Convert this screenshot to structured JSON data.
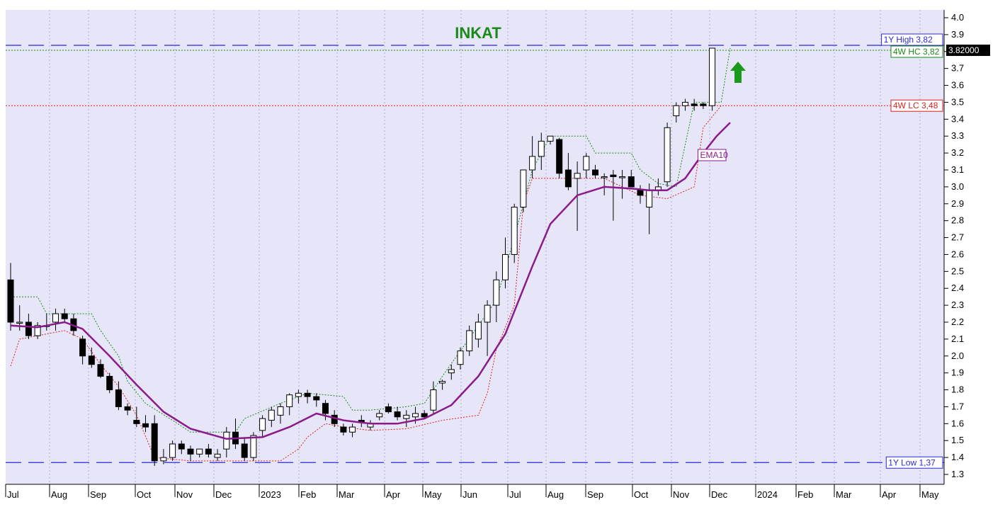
{
  "chart_data": {
    "type": "candlestick",
    "title": "INKAT",
    "price_label": "3.82000",
    "ylim": [
      1.3,
      4.0
    ],
    "y_ticks": [
      "4.0",
      "3.9",
      "3.8",
      "3.7",
      "3.6",
      "3.5",
      "3.4",
      "3.3",
      "3.2",
      "3.1",
      "3.0",
      "2.9",
      "2.8",
      "2.7",
      "2.6",
      "2.5",
      "2.4",
      "2.3",
      "2.2",
      "2.1",
      "2.0",
      "1.9",
      "1.8",
      "1.7",
      "1.6",
      "1.5",
      "1.4",
      "1.3"
    ],
    "x_ticks": [
      "Jul",
      "Aug",
      "Sep",
      "Oct",
      "Nov",
      "Dec",
      "2023",
      "Feb",
      "Mar",
      "Apr",
      "May",
      "Jun",
      "Jul",
      "Aug",
      "Sep",
      "Oct",
      "Nov",
      "Dec",
      "2024",
      "Feb",
      "Mar",
      "Apr",
      "May"
    ],
    "annotations": {
      "high": {
        "label": "1Y High 3,82",
        "value": 3.82
      },
      "hc": {
        "label": "4W HC 3,82",
        "value": 3.82
      },
      "lc": {
        "label": "4W LC 3,48",
        "value": 3.48
      },
      "low": {
        "label": "1Y Low 1,37",
        "value": 1.37
      },
      "ema": {
        "label": "EMA10"
      }
    },
    "colors": {
      "background": "#e6e6f8",
      "title": "#1a8a1a",
      "high_low": "#2a2adb",
      "hc": "#1a8a1a",
      "lc": "#e02020",
      "ema": "#8b1a8b",
      "arrow": "#1a9a1a"
    },
    "candles": [
      [
        2.45,
        2.55,
        2.15,
        2.2
      ],
      [
        2.2,
        2.3,
        2.15,
        2.2
      ],
      [
        2.2,
        2.25,
        2.1,
        2.12
      ],
      [
        2.12,
        2.2,
        2.1,
        2.18
      ],
      [
        2.18,
        2.25,
        2.15,
        2.18
      ],
      [
        2.2,
        2.28,
        2.15,
        2.25
      ],
      [
        2.25,
        2.28,
        2.2,
        2.22
      ],
      [
        2.22,
        2.25,
        2.12,
        2.15
      ],
      [
        2.1,
        2.12,
        1.95,
        2.0
      ],
      [
        2.0,
        2.05,
        1.93,
        1.95
      ],
      [
        1.95,
        1.98,
        1.87,
        1.88
      ],
      [
        1.88,
        1.9,
        1.78,
        1.8
      ],
      [
        1.8,
        1.85,
        1.68,
        1.7
      ],
      [
        1.7,
        1.72,
        1.65,
        1.68
      ],
      [
        1.62,
        1.7,
        1.58,
        1.6
      ],
      [
        1.6,
        1.65,
        1.55,
        1.58
      ],
      [
        1.6,
        1.65,
        1.35,
        1.38
      ],
      [
        1.38,
        1.45,
        1.36,
        1.4
      ],
      [
        1.4,
        1.5,
        1.38,
        1.48
      ],
      [
        1.48,
        1.5,
        1.42,
        1.45
      ],
      [
        1.45,
        1.47,
        1.38,
        1.42
      ],
      [
        1.42,
        1.45,
        1.4,
        1.45
      ],
      [
        1.45,
        1.48,
        1.4,
        1.42
      ],
      [
        1.4,
        1.45,
        1.38,
        1.42
      ],
      [
        1.45,
        1.58,
        1.4,
        1.55
      ],
      [
        1.55,
        1.63,
        1.45,
        1.48
      ],
      [
        1.48,
        1.52,
        1.38,
        1.4
      ],
      [
        1.4,
        1.55,
        1.38,
        1.53
      ],
      [
        1.56,
        1.65,
        1.52,
        1.63
      ],
      [
        1.62,
        1.7,
        1.58,
        1.68
      ],
      [
        1.65,
        1.72,
        1.6,
        1.7
      ],
      [
        1.7,
        1.78,
        1.65,
        1.77
      ],
      [
        1.76,
        1.8,
        1.72,
        1.78
      ],
      [
        1.78,
        1.8,
        1.72,
        1.76
      ],
      [
        1.76,
        1.78,
        1.7,
        1.74
      ],
      [
        1.72,
        1.74,
        1.62,
        1.66
      ],
      [
        1.65,
        1.68,
        1.58,
        1.6
      ],
      [
        1.58,
        1.6,
        1.53,
        1.55
      ],
      [
        1.55,
        1.6,
        1.52,
        1.58
      ],
      [
        1.62,
        1.65,
        1.58,
        1.61
      ],
      [
        1.58,
        1.62,
        1.56,
        1.6
      ],
      [
        1.64,
        1.68,
        1.62,
        1.66
      ],
      [
        1.7,
        1.72,
        1.66,
        1.67
      ],
      [
        1.67,
        1.7,
        1.62,
        1.64
      ],
      [
        1.63,
        1.68,
        1.58,
        1.65
      ],
      [
        1.64,
        1.7,
        1.6,
        1.66
      ],
      [
        1.66,
        1.68,
        1.63,
        1.64
      ],
      [
        1.68,
        1.85,
        1.66,
        1.8
      ],
      [
        1.84,
        1.86,
        1.8,
        1.85
      ],
      [
        1.9,
        1.95,
        1.86,
        1.92
      ],
      [
        1.95,
        2.05,
        1.92,
        2.03
      ],
      [
        2.03,
        2.18,
        2.0,
        2.15
      ],
      [
        2.1,
        2.25,
        2.05,
        2.2
      ],
      [
        2.2,
        2.33,
        2.0,
        2.3
      ],
      [
        2.3,
        2.5,
        2.2,
        2.45
      ],
      [
        2.45,
        2.7,
        2.4,
        2.6
      ],
      [
        2.6,
        2.9,
        2.55,
        2.88
      ],
      [
        2.88,
        3.1,
        2.85,
        3.1
      ],
      [
        3.1,
        3.3,
        3.05,
        3.18
      ],
      [
        3.18,
        3.32,
        3.1,
        3.27
      ],
      [
        3.27,
        3.3,
        3.25,
        3.3
      ],
      [
        3.28,
        3.29,
        3.05,
        3.08
      ],
      [
        3.1,
        3.2,
        2.98,
        3.0
      ],
      [
        3.05,
        3.15,
        2.74,
        3.08
      ],
      [
        3.1,
        3.2,
        3.05,
        3.18
      ],
      [
        3.1,
        3.13,
        3.05,
        3.07
      ],
      [
        3.06,
        3.08,
        2.95,
        3.06
      ],
      [
        3.07,
        3.1,
        2.8,
        3.06
      ],
      [
        3.06,
        3.1,
        2.93,
        3.06
      ],
      [
        3.06,
        3.1,
        3.0,
        3.0
      ],
      [
        2.98,
        3.01,
        2.9,
        2.95
      ],
      [
        2.88,
        3.02,
        2.72,
        2.98
      ],
      [
        2.98,
        3.05,
        2.95,
        3.0
      ],
      [
        3.03,
        3.38,
        3.0,
        3.35
      ],
      [
        3.42,
        3.5,
        3.38,
        3.48
      ],
      [
        3.48,
        3.52,
        3.45,
        3.5
      ],
      [
        3.49,
        3.52,
        3.45,
        3.48
      ],
      [
        3.49,
        3.5,
        3.46,
        3.48
      ],
      [
        3.48,
        3.82,
        3.45,
        3.82
      ]
    ],
    "ema10": [
      [
        0,
        2.18
      ],
      [
        3,
        2.17
      ],
      [
        6,
        2.2
      ],
      [
        8,
        2.16
      ],
      [
        11,
        2.0
      ],
      [
        14,
        1.83
      ],
      [
        17,
        1.67
      ],
      [
        20,
        1.57
      ],
      [
        24,
        1.51
      ],
      [
        28,
        1.52
      ],
      [
        31,
        1.58
      ],
      [
        34,
        1.66
      ],
      [
        37,
        1.62
      ],
      [
        40,
        1.6
      ],
      [
        43,
        1.6
      ],
      [
        46,
        1.63
      ],
      [
        49,
        1.71
      ],
      [
        52,
        1.88
      ],
      [
        55,
        2.13
      ],
      [
        58,
        2.53
      ],
      [
        60,
        2.78
      ],
      [
        63,
        2.95
      ],
      [
        66,
        3.0
      ],
      [
        69,
        2.99
      ],
      [
        71,
        2.98
      ],
      [
        73,
        2.98
      ],
      [
        75,
        3.05
      ],
      [
        77,
        3.2
      ],
      [
        78.5,
        3.3
      ],
      [
        80,
        3.38
      ]
    ],
    "hc_trail": [
      [
        0,
        2.35
      ],
      [
        3,
        2.35
      ],
      [
        4,
        2.25
      ],
      [
        9,
        2.25
      ],
      [
        10,
        2.15
      ],
      [
        12,
        2.0
      ],
      [
        13,
        1.85
      ],
      [
        15,
        1.72
      ],
      [
        18,
        1.62
      ],
      [
        20,
        1.55
      ],
      [
        25,
        1.55
      ],
      [
        26,
        1.63
      ],
      [
        30,
        1.72
      ],
      [
        33,
        1.78
      ],
      [
        37,
        1.76
      ],
      [
        38,
        1.68
      ],
      [
        40,
        1.68
      ],
      [
        44,
        1.7
      ],
      [
        46,
        1.72
      ],
      [
        48,
        1.88
      ],
      [
        52,
        2.18
      ],
      [
        54,
        2.33
      ],
      [
        56,
        2.7
      ],
      [
        58,
        3.1
      ],
      [
        60,
        3.3
      ],
      [
        64,
        3.3
      ],
      [
        65,
        3.2
      ],
      [
        69,
        3.2
      ],
      [
        70,
        3.1
      ],
      [
        72,
        3.02
      ],
      [
        74,
        3.0
      ],
      [
        76,
        3.5
      ],
      [
        79,
        3.5
      ],
      [
        80,
        3.82
      ]
    ],
    "lc_trail": [
      [
        0,
        1.94
      ],
      [
        1,
        2.1
      ],
      [
        3,
        2.12
      ],
      [
        6,
        2.15
      ],
      [
        8,
        2.1
      ],
      [
        10,
        1.95
      ],
      [
        12,
        1.82
      ],
      [
        14,
        1.65
      ],
      [
        16,
        1.4
      ],
      [
        20,
        1.38
      ],
      [
        30,
        1.38
      ],
      [
        32,
        1.45
      ],
      [
        33,
        1.52
      ],
      [
        35,
        1.6
      ],
      [
        37,
        1.58
      ],
      [
        40,
        1.56
      ],
      [
        44,
        1.57
      ],
      [
        48,
        1.62
      ],
      [
        52,
        1.65
      ],
      [
        53,
        1.78
      ],
      [
        54,
        2.04
      ],
      [
        56,
        2.3
      ],
      [
        57,
        2.9
      ],
      [
        58,
        3.05
      ],
      [
        66,
        3.05
      ],
      [
        68,
        3.0
      ],
      [
        70,
        2.95
      ],
      [
        73,
        2.93
      ],
      [
        76,
        3.0
      ],
      [
        77,
        3.35
      ],
      [
        79,
        3.48
      ]
    ]
  }
}
